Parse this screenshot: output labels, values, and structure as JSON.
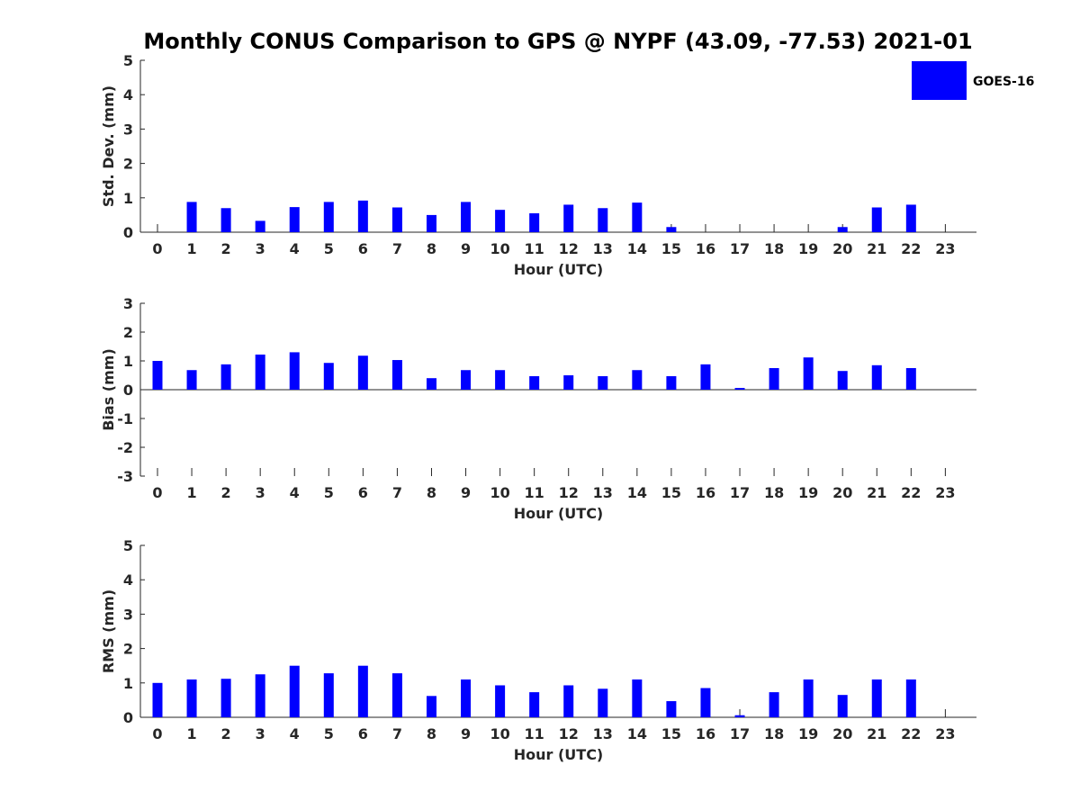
{
  "title": "Monthly CONUS Comparison to GPS @ NYPF (43.09, -77.53) 2021-01",
  "legend": {
    "label": "GOES-16",
    "color": "#0000ff",
    "placement": "top-right"
  },
  "chart_data": [
    {
      "type": "bar",
      "ylabel": "Std. Dev. (mm)",
      "xlabel": "Hour (UTC)",
      "ylim": [
        0,
        5
      ],
      "yticks": [
        "0",
        "1",
        "2",
        "3",
        "4",
        "5"
      ],
      "categories": [
        "0",
        "1",
        "2",
        "3",
        "4",
        "5",
        "6",
        "7",
        "8",
        "9",
        "10",
        "11",
        "12",
        "13",
        "14",
        "15",
        "16",
        "17",
        "18",
        "19",
        "20",
        "21",
        "22",
        "23"
      ],
      "series": [
        {
          "name": "GOES-16",
          "color": "#0000ff",
          "values": [
            null,
            0.88,
            0.7,
            0.33,
            0.73,
            0.88,
            0.92,
            0.72,
            0.5,
            0.88,
            0.65,
            0.55,
            0.8,
            0.7,
            0.86,
            0.15,
            null,
            null,
            null,
            null,
            0.15,
            0.72,
            0.8,
            null
          ]
        }
      ]
    },
    {
      "type": "bar",
      "ylabel": "Bias (mm)",
      "xlabel": "Hour (UTC)",
      "ylim": [
        -3,
        3
      ],
      "yticks": [
        "-3",
        "-2",
        "-1",
        "0",
        "1",
        "2",
        "3"
      ],
      "categories": [
        "0",
        "1",
        "2",
        "3",
        "4",
        "5",
        "6",
        "7",
        "8",
        "9",
        "10",
        "11",
        "12",
        "13",
        "14",
        "15",
        "16",
        "17",
        "18",
        "19",
        "20",
        "21",
        "22",
        "23"
      ],
      "series": [
        {
          "name": "GOES-16",
          "color": "#0000ff",
          "values": [
            1.0,
            0.68,
            0.88,
            1.22,
            1.3,
            0.93,
            1.18,
            1.03,
            0.4,
            0.68,
            0.68,
            0.47,
            0.5,
            0.47,
            0.68,
            0.47,
            0.88,
            0.06,
            0.75,
            1.12,
            0.65,
            0.85,
            0.75,
            null
          ]
        }
      ]
    },
    {
      "type": "bar",
      "ylabel": "RMS (mm)",
      "xlabel": "Hour (UTC)",
      "ylim": [
        0,
        5
      ],
      "yticks": [
        "0",
        "1",
        "2",
        "3",
        "4",
        "5"
      ],
      "categories": [
        "0",
        "1",
        "2",
        "3",
        "4",
        "5",
        "6",
        "7",
        "8",
        "9",
        "10",
        "11",
        "12",
        "13",
        "14",
        "15",
        "16",
        "17",
        "18",
        "19",
        "20",
        "21",
        "22",
        "23"
      ],
      "series": [
        {
          "name": "GOES-16",
          "color": "#0000ff",
          "values": [
            1.0,
            1.1,
            1.12,
            1.25,
            1.5,
            1.28,
            1.5,
            1.28,
            0.62,
            1.1,
            0.93,
            0.73,
            0.93,
            0.83,
            1.1,
            0.47,
            0.85,
            0.06,
            0.73,
            1.1,
            0.65,
            1.1,
            1.1,
            null
          ]
        }
      ]
    }
  ]
}
